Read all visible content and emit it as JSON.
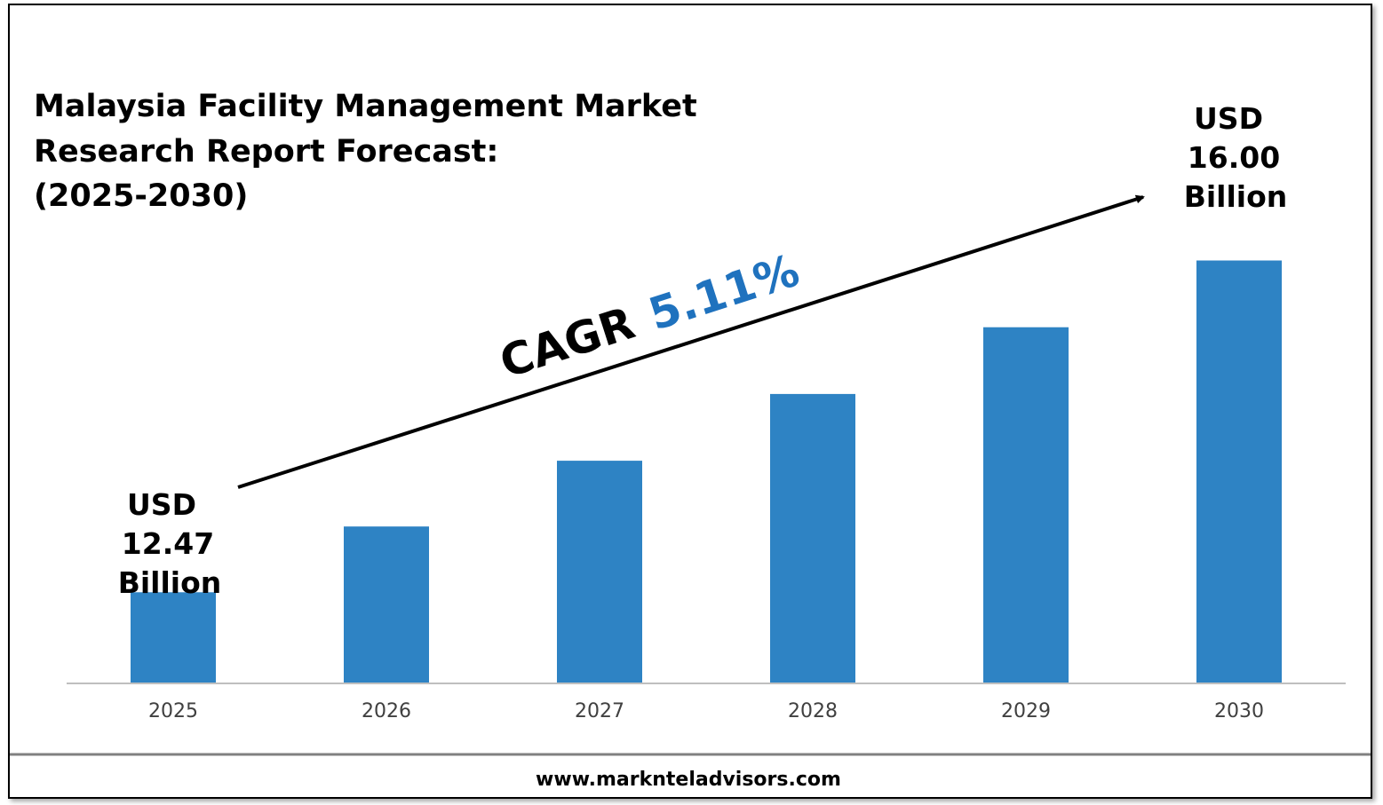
{
  "colors": {
    "bar": "#2E83C4",
    "cagr_value": "#1F72BE",
    "axis": "#BFBFBF",
    "text": "#000000",
    "tick": "#404040"
  },
  "chart_data": {
    "type": "bar",
    "title_lines": [
      "Malaysia Facility Management Market",
      "Research Report Forecast:",
      "(2025-2030)"
    ],
    "categories": [
      "2025",
      "2026",
      "2027",
      "2028",
      "2029",
      "2030"
    ],
    "values": [
      12.47,
      13.17,
      13.87,
      14.58,
      15.29,
      16.0
    ],
    "unit": "USD Billion",
    "ylim": [
      11.5,
      16.6
    ],
    "grid": false,
    "annotations": {
      "start": [
        "USD",
        "12.47",
        "Billion"
      ],
      "end": [
        "USD",
        "16.00",
        "Billion"
      ],
      "cagr_label": "CAGR",
      "cagr_value": "5.11%"
    }
  },
  "footer": {
    "url": "www.marknteladvisors.com"
  }
}
